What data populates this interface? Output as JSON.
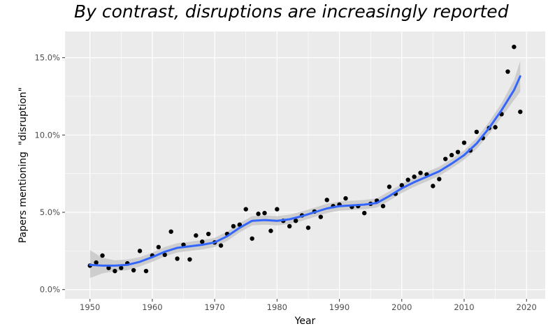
{
  "chart_data": {
    "type": "scatter",
    "title": "By contrast, disruptions are increasingly reported",
    "xlabel": "Year",
    "ylabel": "Papers mentioning  \"disruption\"",
    "xlim": [
      1946,
      2023
    ],
    "ylim": [
      -0.6,
      16.7
    ],
    "x_ticks": [
      1950,
      1960,
      1970,
      1980,
      1990,
      2000,
      2010,
      2020
    ],
    "x_tick_labels": [
      "1950",
      "1960",
      "1970",
      "1980",
      "1990",
      "2000",
      "2010",
      "2020"
    ],
    "y_ticks": [
      0,
      5,
      10,
      15
    ],
    "y_tick_labels": [
      "0.0%",
      "5.0%",
      "10.0%",
      "15.0%"
    ],
    "grid": true,
    "legend": "none",
    "colors": {
      "panel": "#ebebeb",
      "grid_major": "#ffffff",
      "points": "#000000",
      "smooth_line": "#3366ff",
      "confidence_band": "#c8c8c8"
    },
    "series": [
      {
        "kind": "points",
        "x": [
          1950,
          1951,
          1952,
          1953,
          1954,
          1955,
          1956,
          1957,
          1958,
          1959,
          1960,
          1961,
          1962,
          1963,
          1964,
          1965,
          1966,
          1967,
          1968,
          1969,
          1970,
          1971,
          1972,
          1973,
          1974,
          1975,
          1976,
          1977,
          1978,
          1979,
          1980,
          1981,
          1982,
          1983,
          1984,
          1985,
          1986,
          1987,
          1988,
          1989,
          1990,
          1991,
          1992,
          1993,
          1994,
          1995,
          1996,
          1997,
          1998,
          1999,
          2000,
          2001,
          2002,
          2003,
          2004,
          2005,
          2006,
          2007,
          2008,
          2009,
          2010,
          2011,
          2012,
          2013,
          2014,
          2015,
          2016,
          2017,
          2018,
          2019
        ],
        "y": [
          1.55,
          1.75,
          2.2,
          1.4,
          1.2,
          1.4,
          1.7,
          1.25,
          2.5,
          1.2,
          2.2,
          2.75,
          2.25,
          3.75,
          2.0,
          2.9,
          1.95,
          3.5,
          3.1,
          3.6,
          3.05,
          2.85,
          3.6,
          4.1,
          4.2,
          5.2,
          3.3,
          4.9,
          4.95,
          3.8,
          5.2,
          4.45,
          4.1,
          4.45,
          4.8,
          4.0,
          5.05,
          4.7,
          5.8,
          5.4,
          5.5,
          5.9,
          5.35,
          5.4,
          4.95,
          5.55,
          5.75,
          5.4,
          6.65,
          6.2,
          6.75,
          7.1,
          7.3,
          7.55,
          7.45,
          6.7,
          7.15,
          8.45,
          8.7,
          8.9,
          9.5,
          9.0,
          10.2,
          9.8,
          10.45,
          10.5,
          11.35,
          14.1,
          15.7,
          11.5
        ]
      },
      {
        "kind": "smooth",
        "x": [
          1950,
          1952,
          1954,
          1956,
          1958,
          1960,
          1962,
          1964,
          1966,
          1968,
          1970,
          1972,
          1974,
          1976,
          1978,
          1980,
          1982,
          1984,
          1986,
          1988,
          1990,
          1992,
          1994,
          1996,
          1998,
          2000,
          2002,
          2004,
          2006,
          2008,
          2010,
          2012,
          2014,
          2016,
          2018,
          2019
        ],
        "y": [
          1.6,
          1.55,
          1.55,
          1.6,
          1.8,
          2.1,
          2.45,
          2.7,
          2.8,
          2.9,
          3.05,
          3.45,
          4.0,
          4.45,
          4.5,
          4.45,
          4.55,
          4.75,
          5.0,
          5.25,
          5.4,
          5.45,
          5.5,
          5.6,
          6.05,
          6.55,
          6.95,
          7.3,
          7.65,
          8.15,
          8.7,
          9.45,
          10.45,
          11.6,
          12.9,
          13.8
        ]
      },
      {
        "kind": "band",
        "x": [
          1950,
          1952,
          1954,
          1956,
          1958,
          1960,
          1962,
          1964,
          1966,
          1968,
          1970,
          1972,
          1974,
          1976,
          1978,
          1980,
          1982,
          1984,
          1986,
          1988,
          1990,
          1992,
          1994,
          1996,
          1998,
          2000,
          2002,
          2004,
          2006,
          2008,
          2010,
          2012,
          2014,
          2016,
          2018,
          2019
        ],
        "upper": [
          2.55,
          2.05,
          1.9,
          1.95,
          2.1,
          2.4,
          2.75,
          3.0,
          3.1,
          3.2,
          3.35,
          3.75,
          4.3,
          4.75,
          4.8,
          4.75,
          4.85,
          5.05,
          5.3,
          5.55,
          5.7,
          5.75,
          5.8,
          5.9,
          6.35,
          6.85,
          7.25,
          7.6,
          7.95,
          8.45,
          9.0,
          9.8,
          10.85,
          12.05,
          13.55,
          14.8
        ],
        "lower": [
          0.75,
          1.05,
          1.2,
          1.25,
          1.5,
          1.8,
          2.15,
          2.4,
          2.5,
          2.6,
          2.75,
          3.15,
          3.7,
          4.15,
          4.2,
          4.15,
          4.25,
          4.45,
          4.7,
          4.95,
          5.1,
          5.15,
          5.2,
          5.3,
          5.75,
          6.25,
          6.65,
          7.0,
          7.35,
          7.85,
          8.4,
          9.1,
          10.05,
          11.15,
          12.25,
          12.8
        ]
      }
    ]
  }
}
